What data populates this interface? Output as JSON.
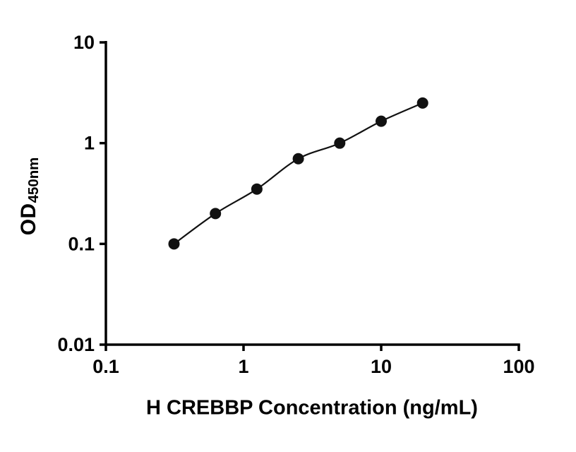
{
  "chart_data": {
    "type": "scatter",
    "title": "",
    "xlabel": "H CREBBP Concentration (ng/mL)",
    "ylabel_main": "OD",
    "ylabel_sub": "450nm",
    "xscale": "log",
    "yscale": "log",
    "xlim": [
      0.1,
      100
    ],
    "ylim": [
      0.01,
      10
    ],
    "xticks": [
      0.1,
      1,
      10,
      100
    ],
    "xtick_labels": [
      "0.1",
      "1",
      "10",
      "100"
    ],
    "yticks": [
      0.01,
      0.1,
      1,
      10
    ],
    "ytick_labels": [
      "0.01",
      "0.1",
      "1",
      "10"
    ],
    "x": [
      0.3125,
      0.625,
      1.25,
      2.5,
      5,
      10,
      20
    ],
    "y": [
      0.1,
      0.2,
      0.35,
      0.7,
      1.0,
      1.65,
      2.5
    ],
    "grid": false,
    "legend": null,
    "marker_color": "#111111",
    "line_color": "#111111",
    "axis_color": "#000000",
    "background_color": "#ffffff"
  }
}
